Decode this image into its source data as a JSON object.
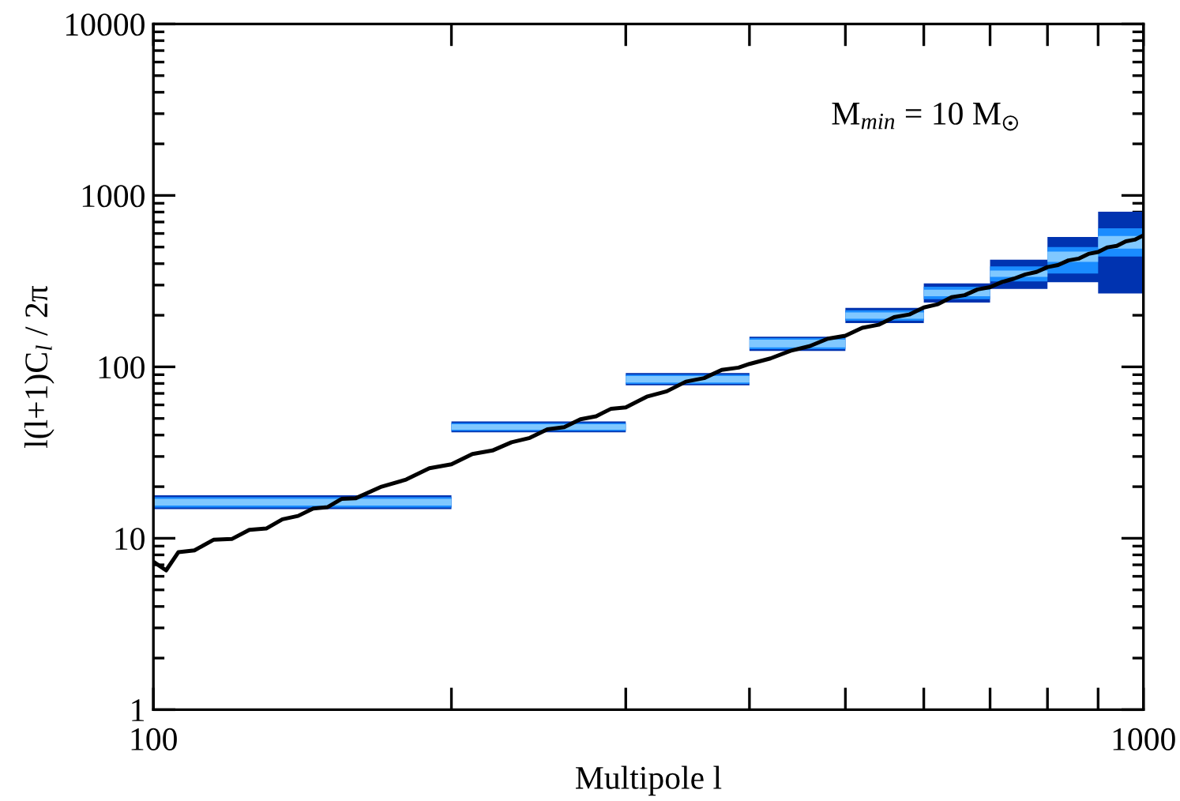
{
  "chart_data": {
    "type": "step",
    "xlabel": "Multipole l",
    "ylabel": "l(l+1)C$_{l}$ / 2π",
    "annotations": [
      "M$_{min}$ = 10 M$_{☉}$"
    ],
    "log": "xy",
    "xlim": [
      100,
      1000
    ],
    "ylim": [
      1,
      10000
    ],
    "xticks": [
      100,
      {
        "value": 200,
        "label": null
      },
      {
        "value": 300,
        "label": null
      },
      {
        "value": 400,
        "label": null
      },
      {
        "value": 500,
        "label": null
      },
      {
        "value": 600,
        "label": null
      },
      {
        "value": 700,
        "label": null
      },
      {
        "value": 800,
        "label": null
      },
      {
        "value": 900,
        "label": null
      },
      1000
    ],
    "yticks": [
      1,
      10,
      100,
      1000,
      10000
    ],
    "series": [
      {
        "color": "#0033b0",
        "x": [
          100,
          200,
          300,
          400,
          500,
          600,
          700,
          800,
          900,
          1000
        ],
        "values": [
          null,
          null,
          null,
          null,
          null,
          null,
          null,
          null,
          null,
          null
        ],
        "lower": [
          14.8,
          41.5,
          78,
          124,
          180,
          237,
          285,
          312,
          268,
          268
        ],
        "upper": [
          17.8,
          48,
          92,
          150,
          221,
          307,
          422,
          573,
          803,
          803
        ]
      },
      {
        "color": "#1a8cff",
        "x": [
          100,
          200,
          300,
          400,
          500,
          600,
          700,
          800,
          900,
          1000
        ],
        "values": [
          null,
          null,
          null,
          null,
          null,
          null,
          null,
          null,
          null,
          null
        ],
        "lower": [
          15.1,
          42.3,
          79.5,
          127,
          186,
          248,
          315,
          350,
          440,
          440
        ],
        "upper": [
          17.4,
          47,
          90,
          147,
          214,
          293,
          385,
          500,
          644,
          644
        ]
      },
      {
        "color": "#80c8ff",
        "x": [
          100,
          200,
          300,
          400,
          500,
          600,
          700,
          800,
          900,
          1000
        ],
        "values": [
          null,
          null,
          null,
          null,
          null,
          null,
          null,
          null,
          null,
          null
        ],
        "lower": [
          15.5,
          43,
          81,
          130,
          191,
          258,
          335,
          410,
          489,
          489
        ],
        "upper": [
          17.0,
          46.3,
          88.5,
          144,
          208,
          282,
          365,
          470,
          580,
          580
        ]
      },
      {
        "type": "line",
        "color": "#000000",
        "x": [
          100,
          103,
          106,
          110,
          115,
          120,
          125,
          130,
          135,
          140,
          145,
          150,
          155,
          160,
          170,
          180,
          190,
          200,
          210,
          220,
          230,
          240,
          250,
          260,
          270,
          280,
          290,
          300,
          315,
          330,
          345,
          360,
          375,
          390,
          400,
          420,
          440,
          460,
          480,
          500,
          520,
          540,
          560,
          580,
          600,
          620,
          640,
          660,
          680,
          700,
          720,
          740,
          760,
          780,
          800,
          820,
          840,
          860,
          880,
          900,
          920,
          940,
          960,
          980,
          1000
        ],
        "values": [
          7.3,
          6.5,
          8.3,
          8.5,
          9.8,
          9.9,
          11.2,
          11.4,
          12.9,
          13.5,
          14.9,
          15.2,
          17.0,
          17.1,
          20.0,
          22.0,
          25.6,
          27.0,
          31.0,
          32.5,
          36.3,
          38.5,
          43.2,
          44.5,
          49.5,
          51.5,
          57.0,
          58.0,
          67,
          72,
          82,
          86,
          96,
          99,
          104,
          112,
          124,
          132,
          146,
          152,
          169,
          176,
          195,
          202,
          222,
          232,
          255,
          262,
          283,
          292,
          313,
          327,
          346,
          358,
          382,
          393,
          418,
          428,
          456,
          468,
          498,
          508,
          540,
          552,
          585
        ]
      }
    ]
  }
}
